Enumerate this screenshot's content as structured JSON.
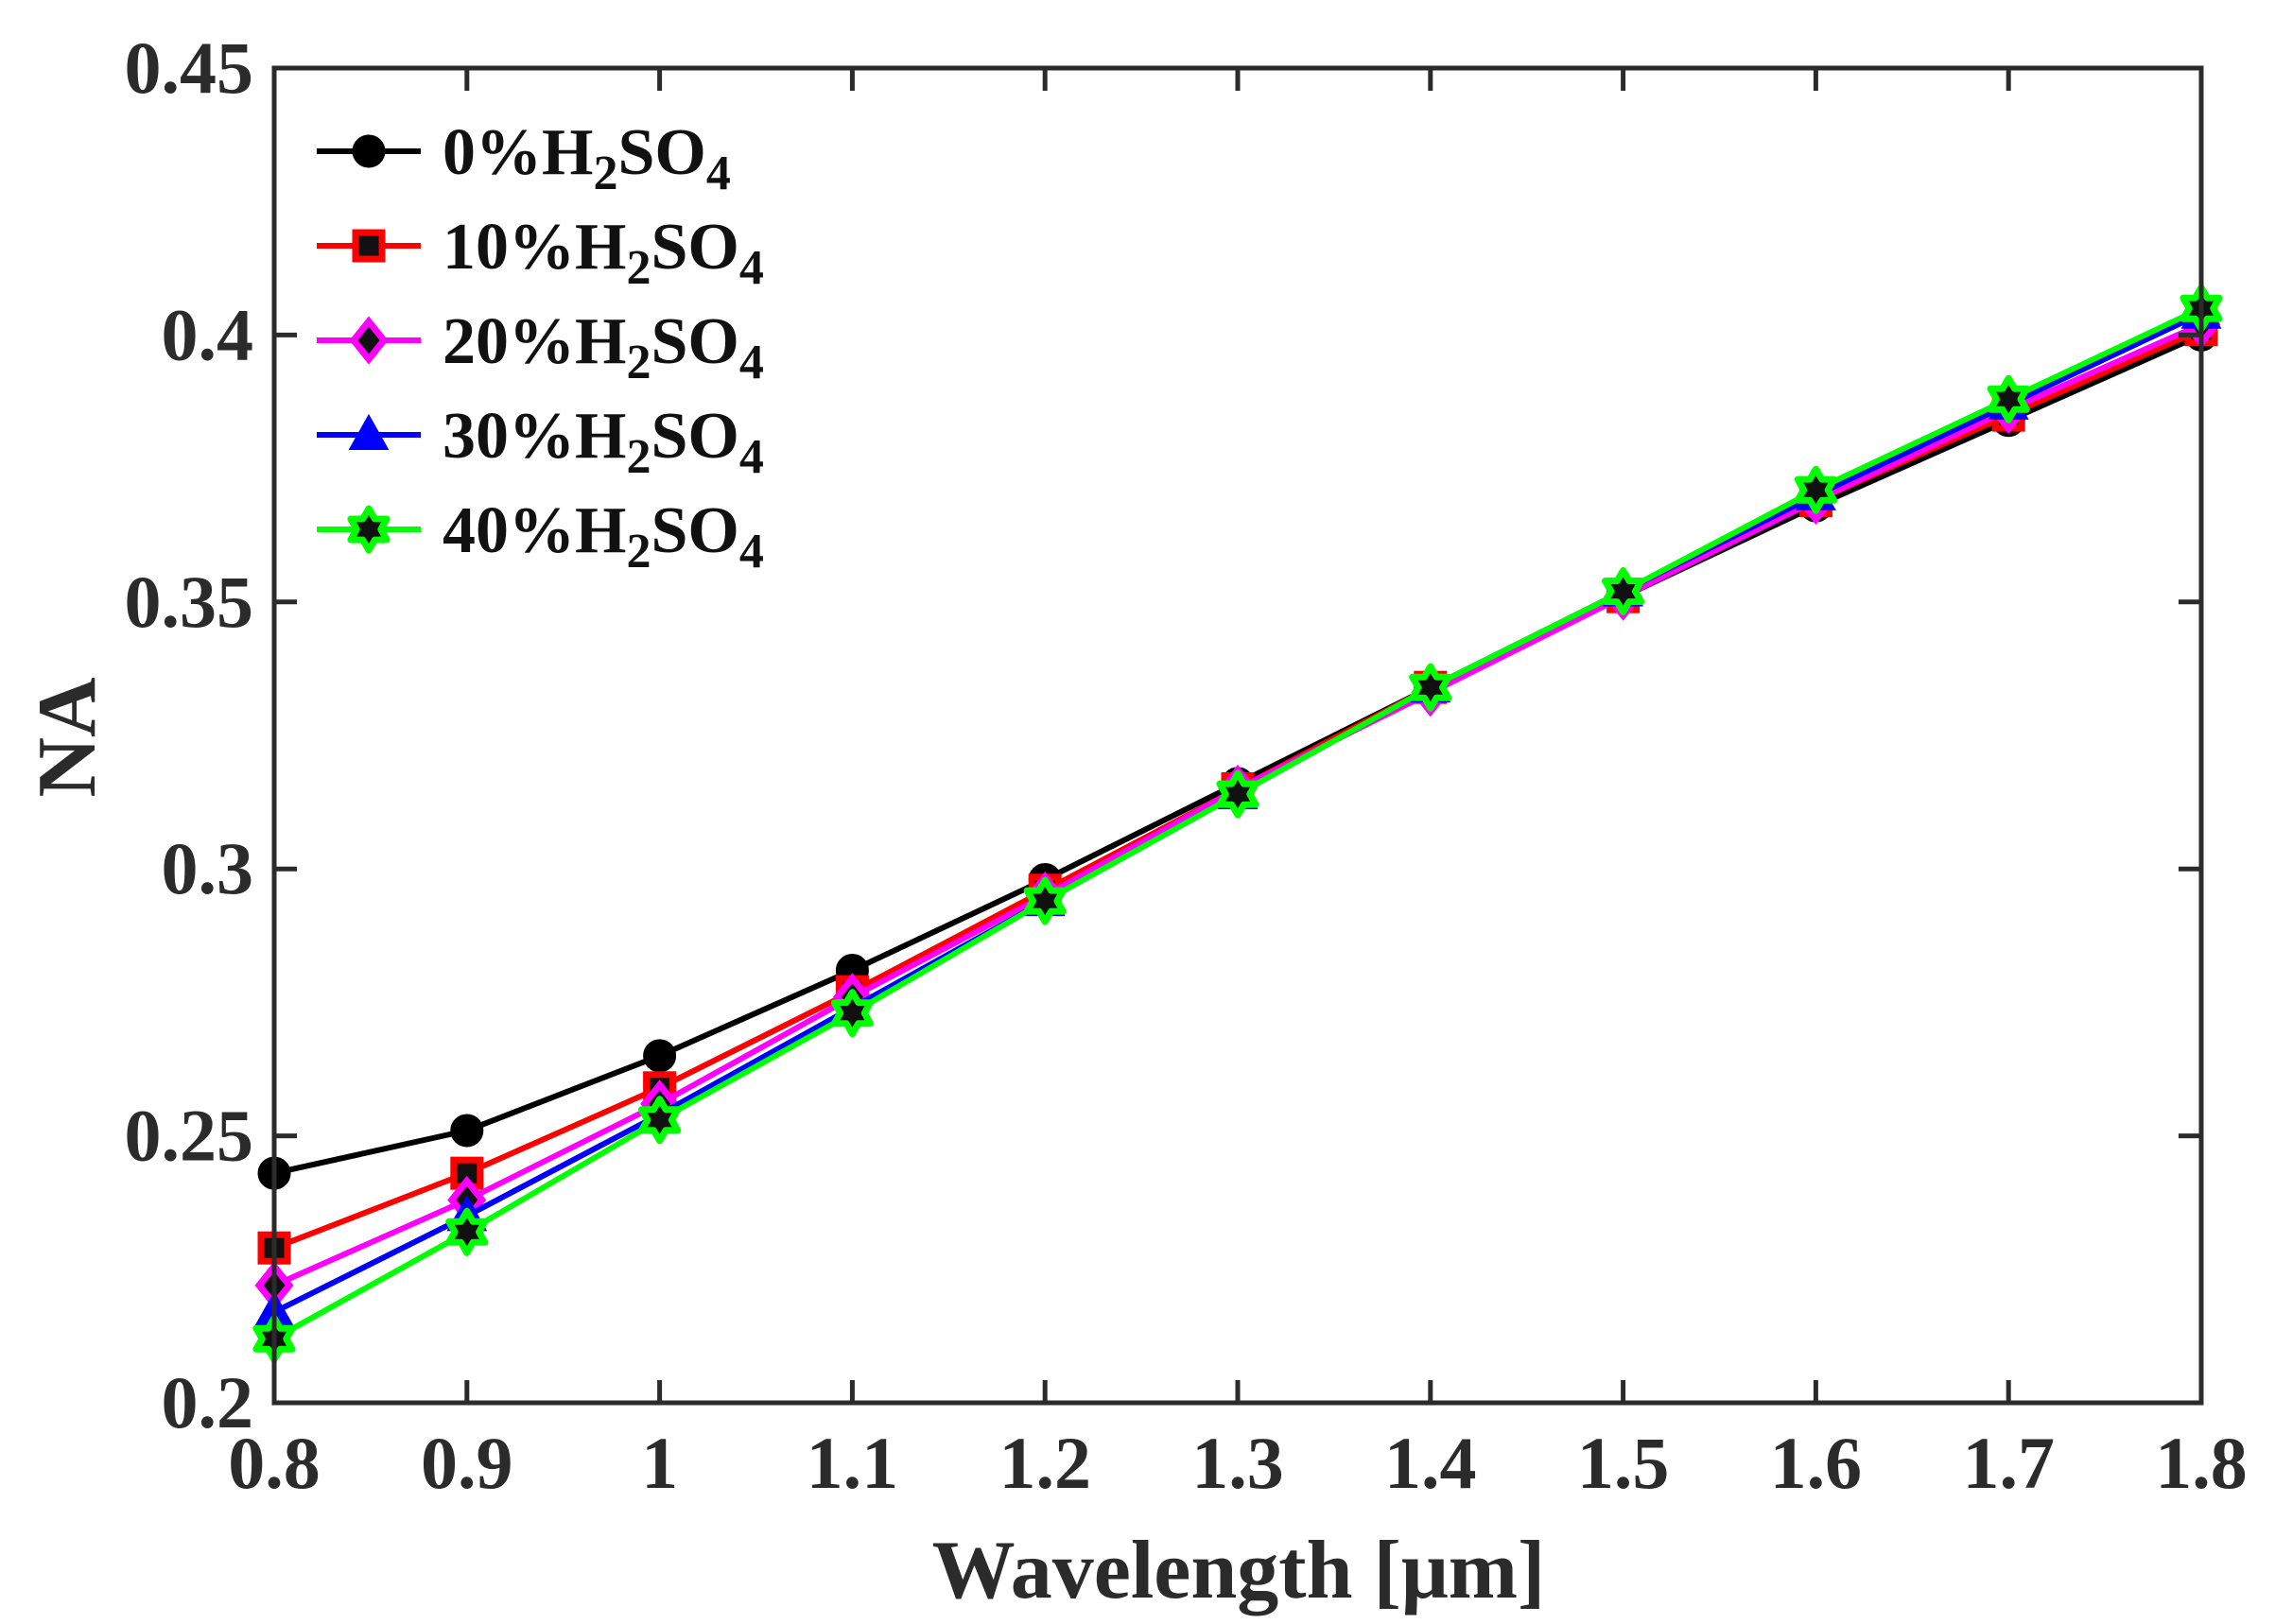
{
  "chart_data": {
    "type": "line",
    "title": "",
    "xlabel": "Wavelength [μm]",
    "ylabel": "NA",
    "xlim": [
      0.8,
      1.8
    ],
    "ylim": [
      0.2,
      0.45
    ],
    "xticks": [
      0.8,
      0.9,
      1.0,
      1.1,
      1.2,
      1.3,
      1.4,
      1.5,
      1.6,
      1.7,
      1.8
    ],
    "xtick_labels": [
      "0.8",
      "0.9",
      "1",
      "1.1",
      "1.2",
      "1.3",
      "1.4",
      "1.5",
      "1.6",
      "1.7",
      "1.8"
    ],
    "yticks": [
      0.2,
      0.25,
      0.3,
      0.35,
      0.4,
      0.45
    ],
    "ytick_labels": [
      "0.2",
      "0.25",
      "0.3",
      "0.35",
      "0.4",
      "0.45"
    ],
    "grid": false,
    "legend_position": "top-left",
    "x": [
      0.8,
      0.9,
      1.0,
      1.1,
      1.2,
      1.3,
      1.4,
      1.5,
      1.6,
      1.7,
      1.8
    ],
    "series": [
      {
        "name": "0%H2SO4",
        "legend": {
          "prefix": "0%",
          "main": "H",
          "sub1": "2",
          "mid": "SO",
          "sub2": "4"
        },
        "color": "#000000",
        "marker": "circle",
        "values": [
          0.243,
          0.251,
          0.265,
          0.281,
          0.298,
          0.316,
          0.334,
          0.351,
          0.368,
          0.384,
          0.4
        ]
      },
      {
        "name": "10%H2SO4",
        "legend": {
          "prefix": "10%",
          "main": "H",
          "sub1": "2",
          "mid": "SO",
          "sub2": "4"
        },
        "color": "#ff0000",
        "marker": "square",
        "values": [
          0.229,
          0.243,
          0.259,
          0.277,
          0.296,
          0.315,
          0.334,
          0.351,
          0.369,
          0.385,
          0.401
        ]
      },
      {
        "name": "20%H2SO4",
        "legend": {
          "prefix": "20%",
          "main": "H",
          "sub1": "2",
          "mid": "SO",
          "sub2": "4"
        },
        "color": "#ff00ff",
        "marker": "diamond",
        "values": [
          0.222,
          0.238,
          0.256,
          0.276,
          0.295,
          0.315,
          0.333,
          0.351,
          0.369,
          0.386,
          0.402
        ]
      },
      {
        "name": "30%H2SO4",
        "legend": {
          "prefix": "30%",
          "main": "H",
          "sub1": "2",
          "mid": "SO",
          "sub2": "4"
        },
        "color": "#0000ff",
        "marker": "triangle",
        "values": [
          0.217,
          0.235,
          0.254,
          0.274,
          0.294,
          0.314,
          0.334,
          0.352,
          0.37,
          0.387,
          0.404
        ]
      },
      {
        "name": "40%H2SO4",
        "legend": {
          "prefix": "40%",
          "main": "H",
          "sub1": "2",
          "mid": "SO",
          "sub2": "4"
        },
        "color": "#00ff00",
        "marker": "hexagram",
        "values": [
          0.212,
          0.232,
          0.253,
          0.273,
          0.294,
          0.314,
          0.334,
          0.352,
          0.371,
          0.388,
          0.405
        ]
      }
    ]
  }
}
